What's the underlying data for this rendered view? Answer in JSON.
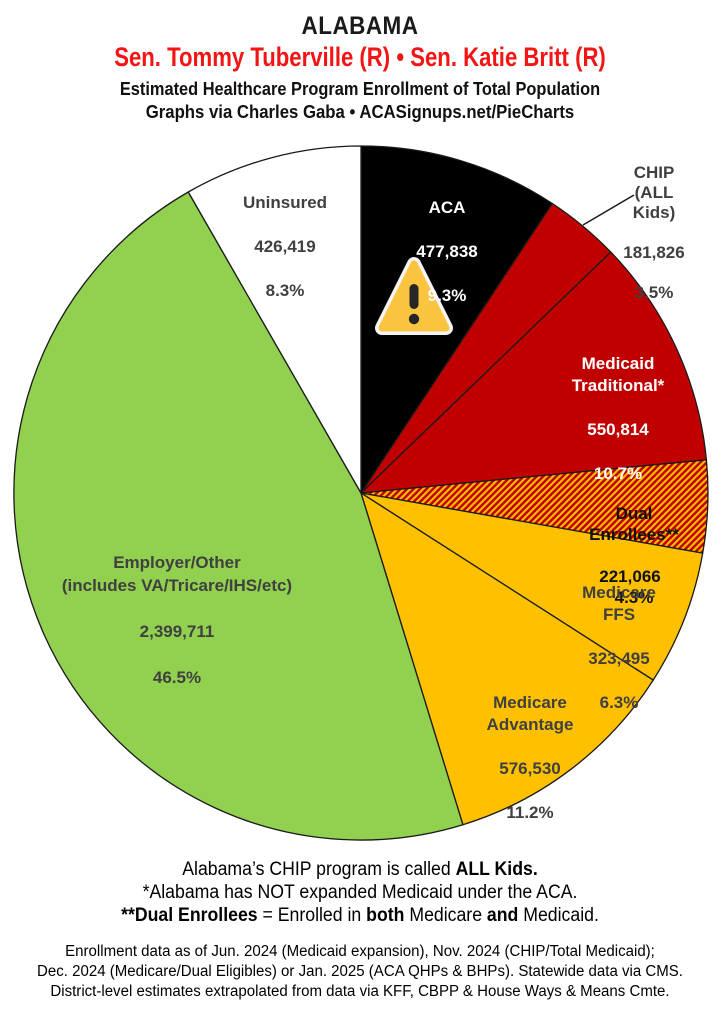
{
  "header": {
    "state": "ALABAMA",
    "senators": "Sen. Tommy Tuberville (R) • Sen. Katie Britt (R)",
    "subtitle1": "Estimated Healthcare Program Enrollment of Total Population",
    "subtitle2": "Graphs via Charles Gaba   •   ACASignups.net/PieCharts"
  },
  "colors": {
    "senators_red": "#F41414",
    "aca_black": "#000000",
    "medicaid_red": "#C00000",
    "medicare_gold": "#FFC000",
    "employer_green": "#92D050",
    "uninsured_white": "#FFFFFF",
    "label_gray": "#404040",
    "warning_yellow": "#F9C440"
  },
  "chart_data": {
    "type": "pie",
    "title": "Estimated Healthcare Program Enrollment of Total Population",
    "direction": "clockwise",
    "start_angle_deg": 0,
    "labels_on_slices": true,
    "slices": [
      {
        "label": "ACA",
        "value": 477838,
        "value_text": "477,838",
        "pct": 9.3,
        "pct_text": "9.3%",
        "color": "#000000",
        "text_color": "#FFFFFF"
      },
      {
        "label": "CHIP (ALL Kids)",
        "value": 181826,
        "value_text": "181,826",
        "pct": 3.5,
        "pct_text": "3.5%",
        "color": "#C00000",
        "text_color": "#404040",
        "label_outside": true
      },
      {
        "label": "Medicaid\nTraditional*",
        "value": 550814,
        "value_text": "550,814",
        "pct": 10.7,
        "pct_text": "10.7%",
        "color": "#C00000",
        "text_color": "#FFFFFF"
      },
      {
        "label": "Dual Enrollees**",
        "value": 221066,
        "value_text": "221,066",
        "pct": 4.3,
        "pct_text": "4.3%",
        "color": "#C00000",
        "pattern": "hatch",
        "pattern_color": "#FFC000",
        "text_color": "#111111"
      },
      {
        "label": "Medicare FFS",
        "value": 323495,
        "value_text": "323,495",
        "pct": 6.3,
        "pct_text": "6.3%",
        "color": "#FFC000",
        "text_color": "#404040"
      },
      {
        "label": "Medicare\nAdvantage",
        "value": 576530,
        "value_text": "576,530",
        "pct": 11.2,
        "pct_text": "11.2%",
        "color": "#FFC000",
        "text_color": "#404040"
      },
      {
        "label": "Employer/Other\n(includes VA/Tricare/IHS/etc)",
        "value": 2399711,
        "value_text": "2,399,711",
        "pct": 46.5,
        "pct_text": "46.5%",
        "color": "#92D050",
        "text_color": "#404040"
      },
      {
        "label": "Uninsured",
        "value": 426419,
        "value_text": "426,419",
        "pct": 8.3,
        "pct_text": "8.3%",
        "color": "#FFFFFF",
        "text_color": "#404040"
      }
    ]
  },
  "footnotes": [
    [
      {
        "t": "Alabama’s CHIP program is called ",
        "b": false
      },
      {
        "t": "ALL Kids.",
        "b": true
      }
    ],
    [
      {
        "t": "*Alabama has NOT expanded Medicaid under the ACA.",
        "b": false
      }
    ],
    [
      {
        "t": "**Dual Enrollees",
        "b": true
      },
      {
        "t": " = Enrolled in ",
        "b": false
      },
      {
        "t": "both",
        "b": true
      },
      {
        "t": " Medicare ",
        "b": false
      },
      {
        "t": "and",
        "b": true
      },
      {
        "t": " Medicaid.",
        "b": false
      }
    ]
  ],
  "source_lines": [
    "Enrollment data as of Jun. 2024 (Medicaid expansion), Nov. 2024 (CHIP/Total Medicaid);",
    "Dec. 2024 (Medicare/Dual Eligibles) or Jan. 2025 (ACA QHPs & BHPs). Statewide data via CMS.",
    "District-level estimates extrapolated from data via KFF, CBPP & House Ways & Means Cmte."
  ]
}
